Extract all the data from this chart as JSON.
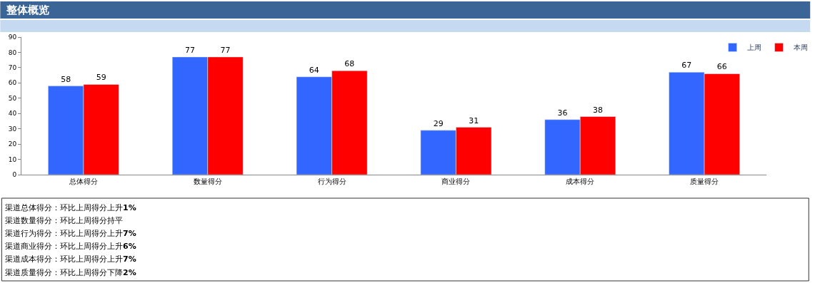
{
  "chart_data": {
    "type": "bar",
    "title": "整体概览",
    "categories": [
      "总体得分",
      "数量得分",
      "行为得分",
      "商业得分",
      "成本得分",
      "质量得分"
    ],
    "series": [
      {
        "name": "上周",
        "color": "#3366ff",
        "values": [
          58,
          77,
          64,
          29,
          36,
          67
        ]
      },
      {
        "name": "本周",
        "color": "#ff0000",
        "values": [
          59,
          77,
          68,
          31,
          38,
          66
        ]
      }
    ],
    "ylim": [
      0,
      90
    ],
    "yticks": [
      0,
      10,
      20,
      30,
      40,
      50,
      60,
      70,
      80,
      90
    ],
    "data_labels": true,
    "legend": "top right",
    "grid": false,
    "annotations": [
      "渠道总体得分：环比上周得分上升1%",
      "渠道数量得分：环比上周得分持平",
      "渠道行为得分：环比上周得分上升7%",
      "渠道商业得分：环比上周得分上升6%",
      "渠道成本得分：环比上周得分上升7%",
      "渠道质量得分：环比上周得分下降2%"
    ]
  }
}
